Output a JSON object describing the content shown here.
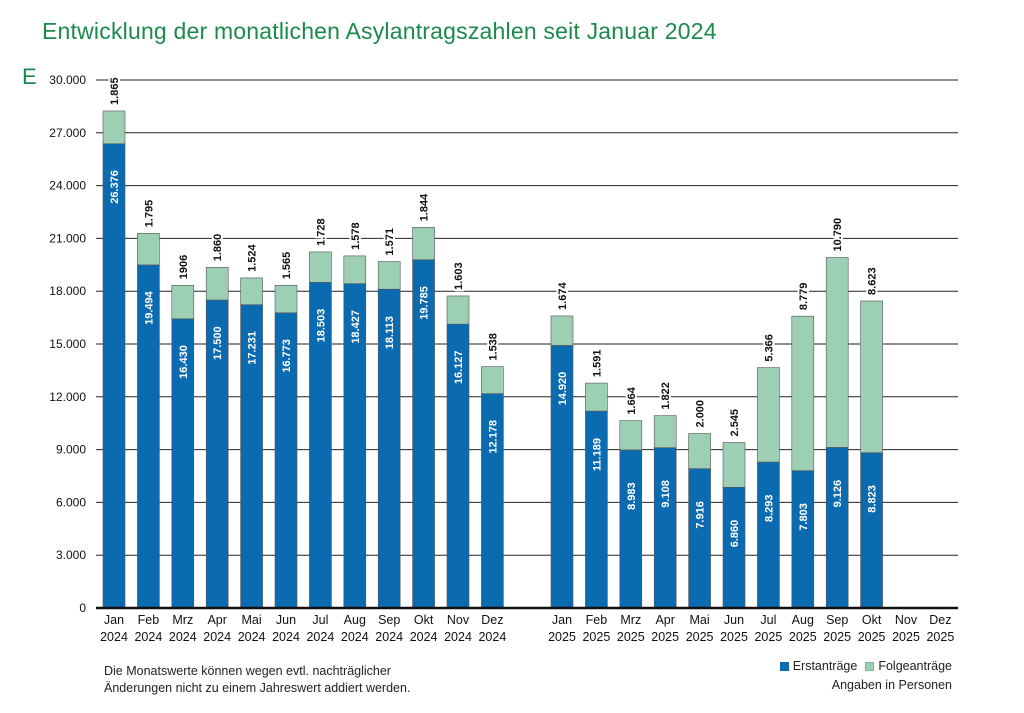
{
  "title": "Entwicklung der monatlichen Asylantragszahlen seit Januar 2024",
  "cut_off_letter": "E",
  "footnote_line1": "Die Monatswerte können wegen evtl. nachträglicher",
  "footnote_line2": "Änderungen nicht zu einem Jahreswert addiert werden.",
  "units": "Angaben in Personen",
  "colors": {
    "erstantraege": "#0b6bb0",
    "folgeantraege": "#9ccfb4",
    "grid": "#222222",
    "title": "#1b8a4b"
  },
  "chart_data": {
    "type": "bar",
    "stacked": true,
    "title": "Entwicklung der monatlichen Asylantragszahlen seit Januar 2024",
    "ylim": [
      0,
      30000
    ],
    "yticks": [
      0,
      3000,
      6000,
      9000,
      12000,
      15000,
      18000,
      21000,
      24000,
      27000,
      30000
    ],
    "ytick_labels": [
      "0",
      "3.000",
      "6.000",
      "9.000",
      "12.000",
      "15.000",
      "18.000",
      "21.000",
      "24.000",
      "27.000",
      "30.000"
    ],
    "categories": [
      {
        "month": "Jan",
        "year": "2024"
      },
      {
        "month": "Feb",
        "year": "2024"
      },
      {
        "month": "Mrz",
        "year": "2024"
      },
      {
        "month": "Apr",
        "year": "2024"
      },
      {
        "month": "Mai",
        "year": "2024"
      },
      {
        "month": "Jun",
        "year": "2024"
      },
      {
        "month": "Jul",
        "year": "2024"
      },
      {
        "month": "Aug",
        "year": "2024"
      },
      {
        "month": "Sep",
        "year": "2024"
      },
      {
        "month": "Okt",
        "year": "2024"
      },
      {
        "month": "Nov",
        "year": "2024"
      },
      {
        "month": "Dez",
        "year": "2024"
      },
      {
        "month": "Jan",
        "year": "2025"
      },
      {
        "month": "Feb",
        "year": "2025"
      },
      {
        "month": "Mrz",
        "year": "2025"
      },
      {
        "month": "Apr",
        "year": "2025"
      },
      {
        "month": "Mai",
        "year": "2025"
      },
      {
        "month": "Jun",
        "year": "2025"
      },
      {
        "month": "Jul",
        "year": "2025"
      },
      {
        "month": "Aug",
        "year": "2025"
      },
      {
        "month": "Sep",
        "year": "2025"
      },
      {
        "month": "Okt",
        "year": "2025"
      },
      {
        "month": "Nov",
        "year": "2025"
      },
      {
        "month": "Dez",
        "year": "2025"
      }
    ],
    "series": [
      {
        "name": "Erstanträge",
        "values": [
          26376,
          19494,
          16430,
          17500,
          17231,
          16773,
          18503,
          18427,
          18113,
          19785,
          16127,
          12178,
          14920,
          11189,
          8983,
          9108,
          7916,
          6860,
          8293,
          7803,
          9126,
          8823,
          null,
          null
        ],
        "labels": [
          "26.376",
          "19.494",
          "16.430",
          "17.500",
          "17.231",
          "16.773",
          "18.503",
          "18.427",
          "18.113",
          "19.785",
          "16.127",
          "12.178",
          "14.920",
          "11.189",
          "8.983",
          "9.108",
          "7.916",
          "6.860",
          "8.293",
          "7.803",
          "9.126",
          "8.823",
          "",
          ""
        ]
      },
      {
        "name": "Folgeanträge",
        "values": [
          1865,
          1795,
          1906,
          1860,
          1524,
          1565,
          1728,
          1578,
          1571,
          1844,
          1603,
          1538,
          1674,
          1591,
          1664,
          1822,
          2000,
          2545,
          5366,
          8779,
          10790,
          8623,
          null,
          null
        ],
        "labels": [
          "1.865",
          "1.795",
          "1906",
          "1.860",
          "1.524",
          "1.565",
          "1.728",
          "1.578",
          "1.571",
          "1.844",
          "1.603",
          "1.538",
          "1.674",
          "1.591",
          "1.664",
          "1.822",
          "2.000",
          "2.545",
          "5.366",
          "8.779",
          "10.790",
          "8.623",
          "",
          ""
        ]
      }
    ],
    "legend": [
      "Erstanträge",
      "Folgeanträge"
    ],
    "legend_position": "bottom-right"
  }
}
